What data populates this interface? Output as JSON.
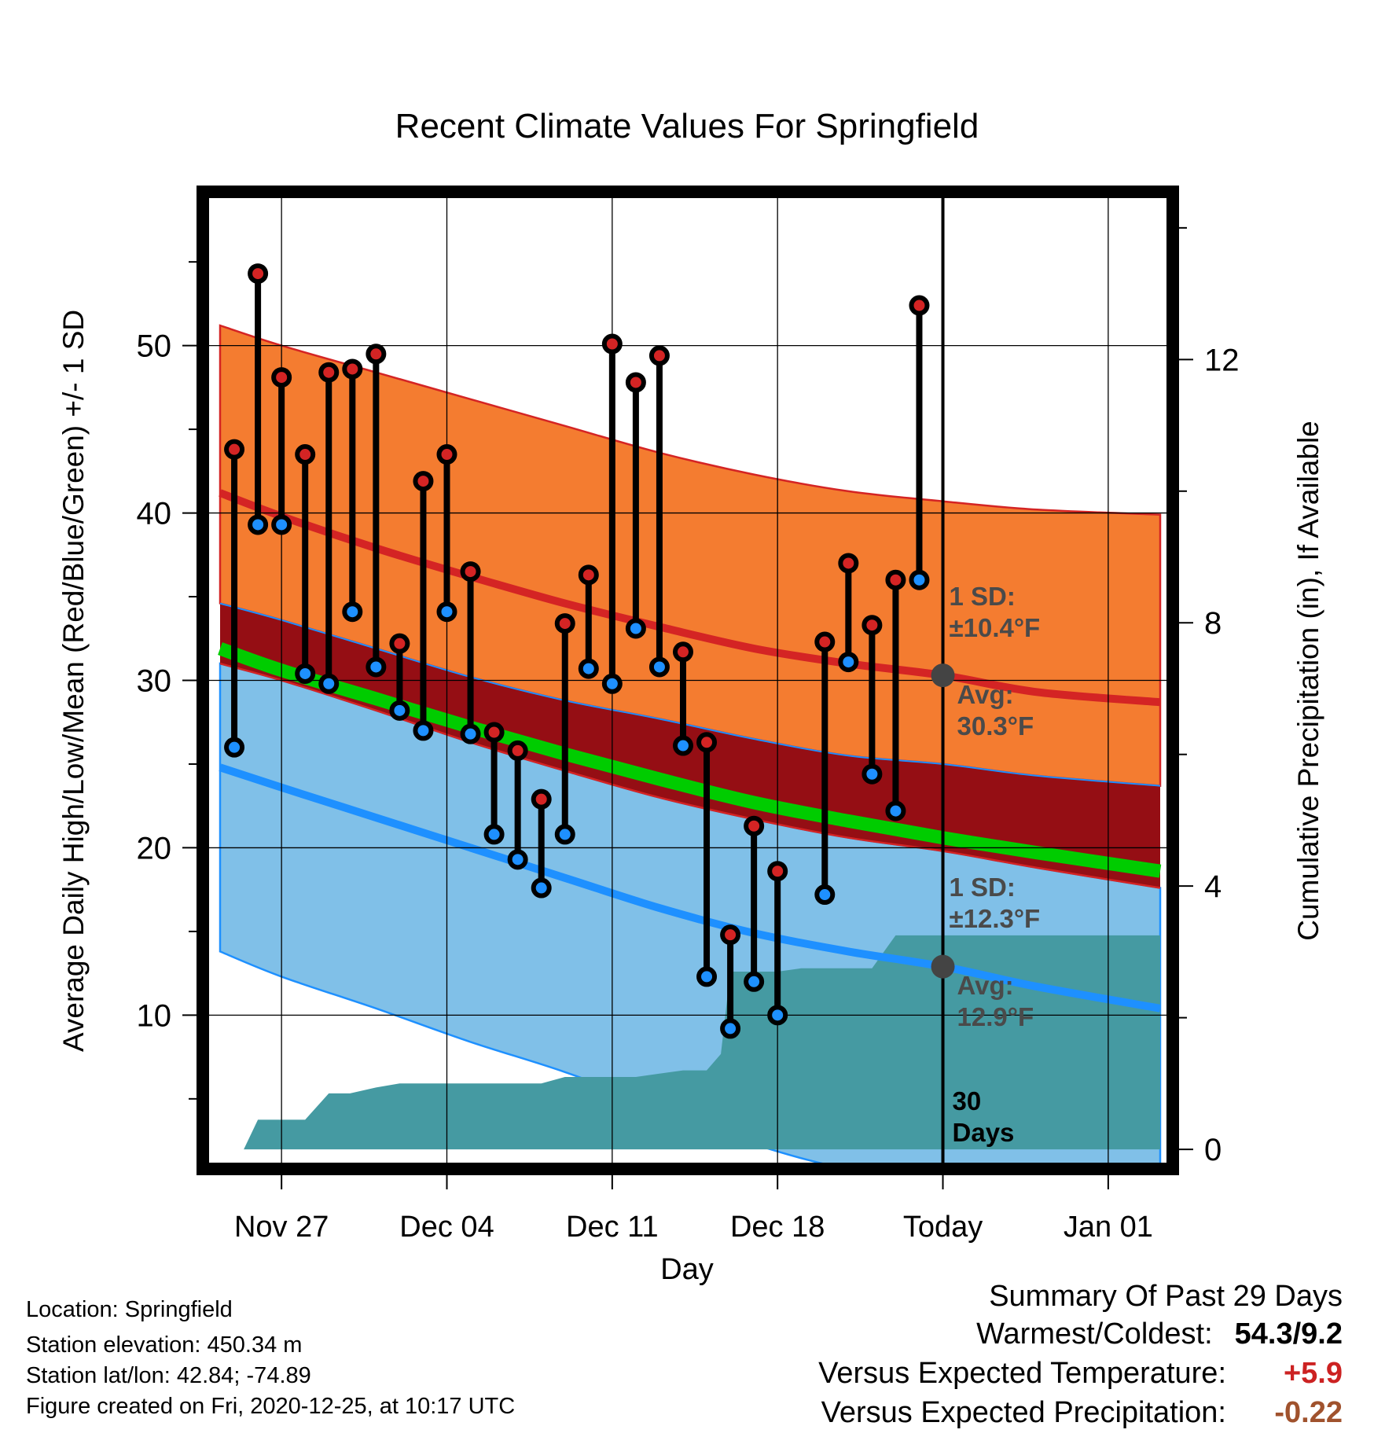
{
  "chart_data": {
    "type": "line",
    "title": "Recent Climate Values For Springfield",
    "xlabel": "Day",
    "ylabel": "Average Daily High/Low/Mean (Red/Blue/Green) +/- 1 SD",
    "y2label": "Cumulative Precipitation (in), If Available",
    "x_tick_labels": [
      "Nov 27",
      "Dec 04",
      "Dec 11",
      "Dec 18",
      "Today",
      "Jan 01"
    ],
    "x_tick_days": [
      0,
      7,
      14,
      21,
      28,
      35
    ],
    "xlim": [
      -3.2,
      37.6
    ],
    "ylim": [
      1,
      59
    ],
    "y_ticks": [
      10,
      20,
      30,
      40,
      50
    ],
    "y2lim": [
      -0.25,
      14.5
    ],
    "y2_ticks": [
      0,
      4,
      8,
      12
    ],
    "today_day": 28,
    "colors": {
      "high_band": "#f47c30",
      "overlap_band": "#950e14",
      "low_band": "#80c0e8",
      "mean_line": "#00cc00",
      "avg_high_line": "#d42424",
      "avg_low_line": "#1e90ff",
      "precip_fill": "#459aa2",
      "high_marker": "#d42424",
      "low_marker": "#1e90ff",
      "stem": "#000000",
      "annotation": "#4a4a4a",
      "positive_departure": "#cc2222",
      "negative_departure": "#a0522d"
    },
    "normal_curves": {
      "days": [
        -2.6,
        0,
        4,
        8,
        12,
        16,
        20,
        24,
        28,
        32,
        37.2
      ],
      "avg_high": [
        41.2,
        39.8,
        37.9,
        36.2,
        34.6,
        33.2,
        31.9,
        31.0,
        30.3,
        29.3,
        28.7
      ],
      "avg_high_plus_sd": [
        51.2,
        50.0,
        48.4,
        46.8,
        45.2,
        43.6,
        42.3,
        41.3,
        40.7,
        40.2,
        39.9
      ],
      "avg_high_minus_sd": [
        34.6,
        33.6,
        31.9,
        30.2,
        28.8,
        27.7,
        26.5,
        25.5,
        25.0,
        24.3,
        23.7
      ],
      "avg_mean": [
        31.9,
        30.6,
        28.9,
        27.2,
        25.6,
        24.1,
        22.7,
        21.6,
        20.6,
        19.7,
        18.6
      ],
      "avg_low": [
        24.8,
        23.6,
        21.8,
        20.0,
        18.2,
        16.4,
        14.9,
        13.8,
        12.9,
        11.7,
        10.4
      ],
      "avg_low_plus_sd": [
        31.0,
        30.0,
        28.2,
        26.3,
        24.6,
        23.0,
        21.7,
        20.6,
        19.8,
        18.8,
        17.6
      ],
      "avg_low_minus_sd": [
        13.8,
        12.3,
        10.4,
        8.4,
        6.6,
        4.5,
        2.3,
        0.8,
        0.1,
        -1.0,
        -2.0
      ]
    },
    "series": [
      {
        "name": "High",
        "days": [
          -2,
          -1,
          0,
          1,
          2,
          3,
          4,
          5,
          6,
          7,
          8,
          9,
          10,
          11,
          12,
          13,
          14,
          15,
          16,
          17,
          18,
          19,
          20,
          21,
          23,
          24,
          25,
          26,
          27
        ],
        "values": [
          43.8,
          54.3,
          48.1,
          43.5,
          48.4,
          48.6,
          49.5,
          32.2,
          41.9,
          43.5,
          36.5,
          26.9,
          25.8,
          22.9,
          33.4,
          36.3,
          50.1,
          47.8,
          49.4,
          31.7,
          26.3,
          14.8,
          21.3,
          18.6,
          32.3,
          37.0,
          33.3,
          36.0,
          52.4
        ]
      },
      {
        "name": "Low",
        "days": [
          -2,
          -1,
          0,
          1,
          2,
          3,
          4,
          5,
          6,
          7,
          8,
          9,
          10,
          11,
          12,
          13,
          14,
          15,
          16,
          17,
          18,
          19,
          20,
          21,
          23,
          24,
          25,
          26,
          27
        ],
        "values": [
          26.0,
          39.3,
          39.3,
          30.4,
          29.8,
          34.1,
          30.8,
          28.2,
          27.0,
          34.1,
          26.8,
          20.8,
          19.3,
          17.6,
          20.8,
          30.7,
          29.8,
          33.1,
          30.8,
          26.1,
          12.3,
          9.2,
          12.0,
          10.0,
          17.2,
          31.1,
          24.4,
          22.2,
          36.0
        ]
      },
      {
        "name": "Cumulative Precipitation",
        "days": [
          -2.6,
          -1.6,
          -1,
          1,
          2,
          2.9,
          4,
          5,
          6,
          7,
          8,
          9,
          10,
          11,
          12,
          13,
          14,
          15,
          16,
          17,
          18,
          18.6,
          19,
          20,
          21,
          22,
          23,
          24,
          25,
          26,
          27,
          28,
          37.2
        ],
        "values": [
          0,
          0,
          0.45,
          0.45,
          0.85,
          0.85,
          0.94,
          1.0,
          1.0,
          1.0,
          1.0,
          1.0,
          1.0,
          1.0,
          1.1,
          1.1,
          1.1,
          1.1,
          1.15,
          1.2,
          1.2,
          1.45,
          2.7,
          2.7,
          2.7,
          2.75,
          2.75,
          2.75,
          2.75,
          3.25,
          3.25,
          3.25,
          3.25
        ]
      }
    ],
    "annotations": {
      "high_sd_label": [
        "1 SD:",
        "±10.4°F"
      ],
      "high_avg_label": [
        "Avg:",
        "30.3°F"
      ],
      "low_sd_label": [
        "1 SD:",
        "±12.3°F"
      ],
      "low_avg_label": [
        "Avg:",
        "12.9°F"
      ],
      "days_label": [
        "30",
        "Days"
      ],
      "avg_high_today": 30.3,
      "avg_low_today": 12.9
    }
  },
  "station_info": {
    "location": "Location: Springfield",
    "elevation": "Station elevation: 450.34 m",
    "latlon": "Station lat/lon: 42.84; -74.89",
    "created": "Figure created on Fri, 2020-12-25, at 10:17 UTC"
  },
  "summary": {
    "title": "Summary Of Past 29 Days",
    "warmest_coldest_label": "Warmest/Coldest:",
    "warmest_coldest_value": "54.3/9.2",
    "temp_label": "Versus Expected Temperature:",
    "temp_value": "+5.9",
    "precip_label": "Versus Expected Precipitation:",
    "precip_value": "-0.22"
  }
}
